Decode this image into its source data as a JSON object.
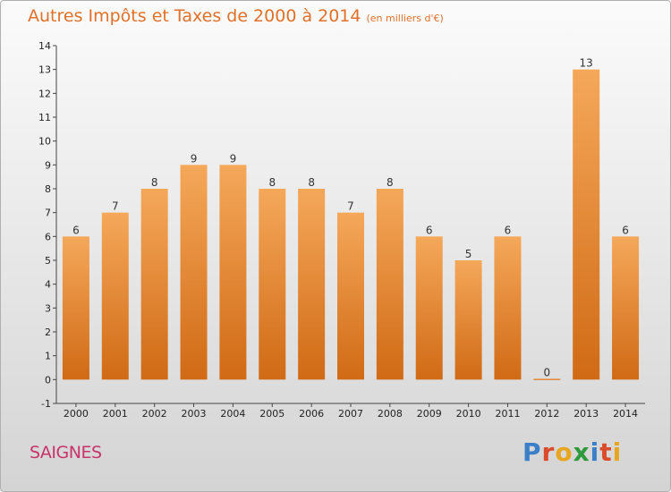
{
  "title": "Autres Impôts et Taxes de 2000 à 2014",
  "unit": "(en milliers d'€)",
  "commune": "SAIGNES",
  "logo": {
    "text": "Proxiti",
    "colors": [
      "#3a7fc8",
      "#d94b2b",
      "#e8a51e",
      "#2f9a3c",
      "#3a7fc8",
      "#d94b2b",
      "#e8a51e"
    ]
  },
  "colors": {
    "title": "#e0702a",
    "bar_top": "#f5a85a",
    "bar_bottom": "#d06a15",
    "commune": "#c8336a"
  },
  "chart_data": {
    "type": "bar",
    "title": "Autres Impôts et Taxes de 2000 à 2014",
    "subtitle": "(en milliers d'€)",
    "categories": [
      "2000",
      "2001",
      "2002",
      "2003",
      "2004",
      "2005",
      "2006",
      "2007",
      "2008",
      "2009",
      "2010",
      "2011",
      "2012",
      "2013",
      "2014"
    ],
    "values": [
      6,
      7,
      8,
      9,
      9,
      8,
      8,
      7,
      8,
      6,
      5,
      6,
      0,
      13,
      6
    ],
    "ylim": [
      -1,
      14
    ],
    "yticks": [
      "-1",
      "0",
      "1",
      "2",
      "3",
      "4",
      "5",
      "6",
      "7",
      "8",
      "9",
      "10",
      "11",
      "12",
      "13",
      "14"
    ],
    "grid": false
  }
}
